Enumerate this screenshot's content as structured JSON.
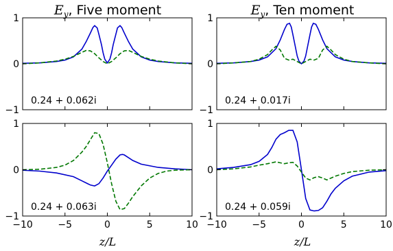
{
  "figure": {
    "xlabel": "z/L",
    "x_ticks": [
      -10,
      -5,
      0,
      5,
      10
    ],
    "y_ticks": [
      -1,
      0,
      1
    ]
  },
  "chart_data": [
    {
      "type": "line",
      "title_var": "E",
      "title_sub": "y",
      "title_rest": ", Five moment",
      "annotation": "0.24 + 0.062i",
      "xlim": [
        -10,
        10
      ],
      "ylim": [
        -1,
        1
      ],
      "grid": false,
      "series": [
        {
          "color": "#0000cc",
          "style": "solid",
          "x": [
            -10,
            -8,
            -6,
            -5,
            -4,
            -3,
            -2.5,
            -2,
            -1.7,
            -1.5,
            -1.2,
            -1,
            -0.7,
            -0.5,
            -0.3,
            0,
            0.3,
            0.5,
            0.7,
            1,
            1.2,
            1.5,
            1.7,
            2,
            2.5,
            3,
            4,
            5,
            6,
            8,
            10
          ],
          "y": [
            0.01,
            0.02,
            0.05,
            0.08,
            0.15,
            0.32,
            0.48,
            0.67,
            0.79,
            0.83,
            0.78,
            0.64,
            0.42,
            0.24,
            0.1,
            0.02,
            0.1,
            0.24,
            0.42,
            0.64,
            0.78,
            0.83,
            0.79,
            0.67,
            0.48,
            0.32,
            0.15,
            0.08,
            0.05,
            0.02,
            0.01
          ]
        },
        {
          "color": "#007700",
          "style": "dashed",
          "x": [
            -10,
            -8,
            -6,
            -5,
            -4,
            -3,
            -2.5,
            -2,
            -1.5,
            -1,
            -0.5,
            0,
            0.5,
            1,
            1.5,
            2,
            2.5,
            3,
            4,
            5,
            6,
            8,
            10
          ],
          "y": [
            0.0,
            0.02,
            0.06,
            0.1,
            0.16,
            0.25,
            0.29,
            0.28,
            0.22,
            0.13,
            0.05,
            0.0,
            0.05,
            0.13,
            0.22,
            0.28,
            0.29,
            0.25,
            0.16,
            0.1,
            0.06,
            0.02,
            0.0
          ]
        }
      ]
    },
    {
      "type": "line",
      "title_var": "E",
      "title_sub": "y",
      "title_rest": ", Ten moment",
      "annotation": "0.24 + 0.017i",
      "xlim": [
        -10,
        10
      ],
      "ylim": [
        -1,
        1
      ],
      "grid": false,
      "series": [
        {
          "color": "#0000cc",
          "style": "solid",
          "x": [
            -10,
            -8,
            -6,
            -5,
            -4,
            -3,
            -2.5,
            -2,
            -1.7,
            -1.4,
            -1.2,
            -1,
            -0.7,
            -0.5,
            -0.3,
            0,
            0.3,
            0.5,
            0.7,
            1,
            1.2,
            1.4,
            1.7,
            2,
            2.5,
            3,
            4,
            5,
            6,
            8,
            10
          ],
          "y": [
            0.01,
            0.02,
            0.05,
            0.08,
            0.15,
            0.33,
            0.52,
            0.75,
            0.86,
            0.88,
            0.8,
            0.63,
            0.35,
            0.17,
            0.06,
            0.0,
            0.06,
            0.17,
            0.35,
            0.63,
            0.8,
            0.88,
            0.86,
            0.75,
            0.52,
            0.33,
            0.15,
            0.08,
            0.05,
            0.02,
            0.01
          ]
        },
        {
          "color": "#007700",
          "style": "dashed",
          "x": [
            -10,
            -8,
            -6,
            -5,
            -4,
            -3.5,
            -3,
            -2.5,
            -2,
            -1.5,
            -1,
            -0.5,
            0,
            0.5,
            1,
            1.5,
            2,
            2.5,
            3,
            3.5,
            4,
            5,
            6,
            8,
            10
          ],
          "y": [
            0.0,
            0.02,
            0.05,
            0.1,
            0.2,
            0.3,
            0.38,
            0.3,
            0.12,
            0.08,
            0.1,
            0.05,
            0.0,
            0.05,
            0.1,
            0.08,
            0.12,
            0.3,
            0.38,
            0.3,
            0.2,
            0.1,
            0.05,
            0.02,
            0.0
          ]
        }
      ]
    },
    {
      "type": "line",
      "annotation": "0.24 + 0.063i",
      "xlim": [
        -10,
        10
      ],
      "ylim": [
        -1,
        1
      ],
      "grid": false,
      "series": [
        {
          "color": "#0000cc",
          "style": "solid",
          "x": [
            -10,
            -8,
            -6,
            -4,
            -3,
            -2,
            -1.5,
            -1,
            -0.5,
            0,
            0.5,
            1,
            1.5,
            1.8,
            2,
            2.5,
            3,
            4,
            6,
            8,
            10
          ],
          "y": [
            -0.01,
            -0.03,
            -0.07,
            -0.15,
            -0.24,
            -0.33,
            -0.35,
            -0.3,
            -0.18,
            -0.03,
            0.1,
            0.23,
            0.32,
            0.33,
            0.32,
            0.26,
            0.2,
            0.12,
            0.05,
            0.02,
            0.0
          ]
        },
        {
          "color": "#007700",
          "style": "dashed",
          "x": [
            -10,
            -8,
            -7,
            -6,
            -5,
            -4,
            -3,
            -2.5,
            -2,
            -1.5,
            -1,
            -0.5,
            0,
            0.5,
            1,
            1.5,
            2,
            2.5,
            3,
            4,
            5,
            6,
            7,
            8,
            10
          ],
          "y": [
            0.0,
            0.01,
            0.03,
            0.05,
            0.1,
            0.2,
            0.38,
            0.5,
            0.65,
            0.8,
            0.78,
            0.55,
            0.15,
            -0.3,
            -0.68,
            -0.86,
            -0.84,
            -0.72,
            -0.58,
            -0.35,
            -0.18,
            -0.08,
            -0.03,
            -0.01,
            0.0
          ]
        }
      ]
    },
    {
      "type": "line",
      "annotation": "0.24 + 0.059i",
      "xlim": [
        -10,
        10
      ],
      "ylim": [
        -1,
        1
      ],
      "grid": false,
      "series": [
        {
          "color": "#0000cc",
          "style": "solid",
          "x": [
            -10,
            -8,
            -6,
            -5,
            -4,
            -3.5,
            -3,
            -2.5,
            -2,
            -1.5,
            -1,
            -0.5,
            0,
            0.5,
            1,
            1.5,
            2,
            2.5,
            3,
            3.5,
            4,
            5,
            6,
            8,
            10
          ],
          "y": [
            0.02,
            0.05,
            0.11,
            0.18,
            0.33,
            0.48,
            0.66,
            0.76,
            0.8,
            0.85,
            0.85,
            0.6,
            0.0,
            -0.62,
            -0.87,
            -0.89,
            -0.88,
            -0.82,
            -0.68,
            -0.52,
            -0.4,
            -0.24,
            -0.14,
            -0.05,
            -0.02
          ]
        },
        {
          "color": "#007700",
          "style": "dashed",
          "x": [
            -10,
            -8,
            -6,
            -5,
            -4,
            -3.5,
            -3,
            -2.5,
            -2,
            -1.5,
            -1,
            -0.5,
            0,
            0.5,
            1,
            1.5,
            2,
            2.5,
            3,
            3.5,
            4,
            5,
            6,
            8,
            10
          ],
          "y": [
            0.0,
            0.02,
            0.06,
            0.1,
            0.13,
            0.15,
            0.17,
            0.15,
            0.13,
            0.15,
            0.16,
            0.08,
            -0.05,
            -0.18,
            -0.22,
            -0.17,
            -0.15,
            -0.18,
            -0.22,
            -0.18,
            -0.14,
            -0.08,
            -0.04,
            -0.01,
            0.0
          ]
        }
      ]
    }
  ]
}
